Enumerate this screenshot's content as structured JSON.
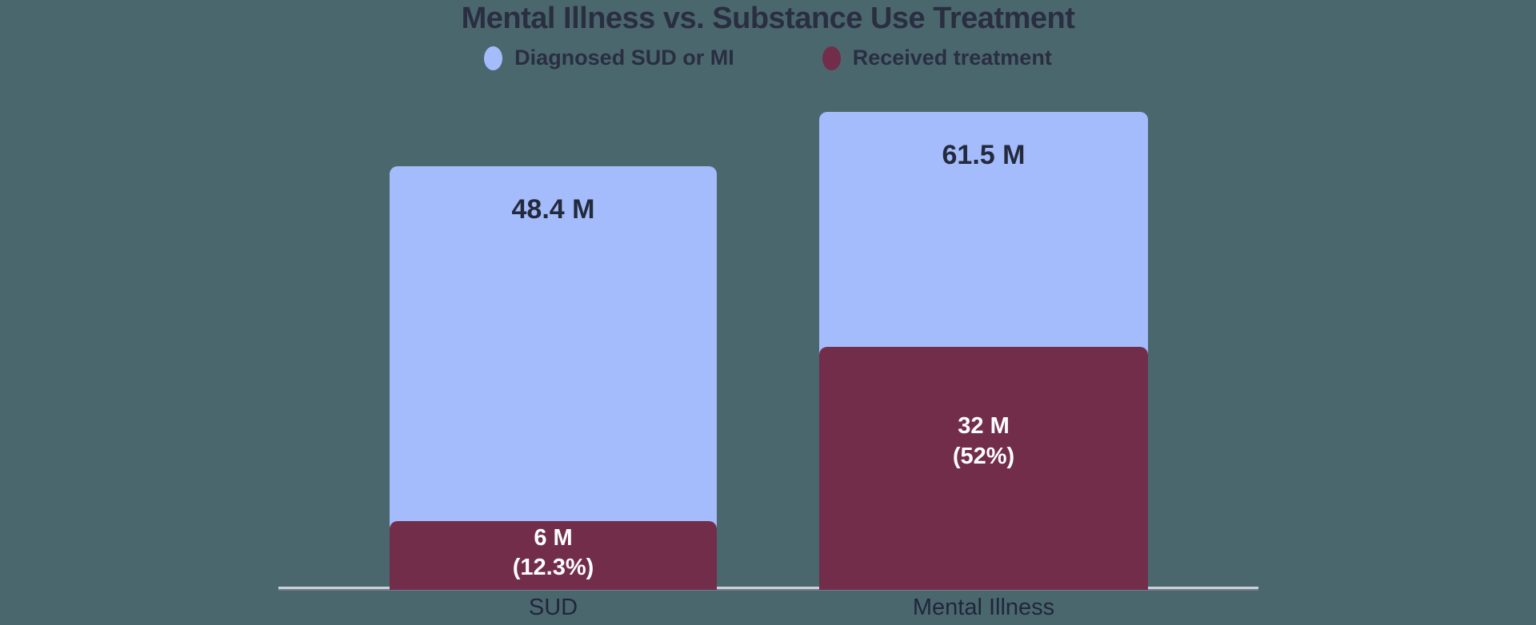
{
  "page": {
    "background_color": "#4b676e"
  },
  "chart": {
    "title": "Mental Illness vs. Substance Use Treatment",
    "title_color": "#292e40",
    "axis_line_color": "#ccd1d8",
    "legend": [
      {
        "label": "Diagnosed SUD or MI",
        "color": "#a4bcfb"
      },
      {
        "label": "Received treatment",
        "color": "#722d4b"
      }
    ],
    "bars": [
      {
        "category": "SUD",
        "total_label": "48.4 M",
        "treated_line1": "6 M",
        "treated_line2": "(12.3%)"
      },
      {
        "category": "Mental Illness",
        "total_label": "61.5 M",
        "treated_line1": "32 M",
        "treated_line2": "(52%)"
      }
    ]
  },
  "chart_data": {
    "type": "bar",
    "categories": [
      "SUD",
      "Mental Illness"
    ],
    "series": [
      {
        "name": "Diagnosed SUD or MI",
        "values": [
          48.4,
          61.5
        ],
        "color": "#a4bcfb"
      },
      {
        "name": "Received treatment",
        "values": [
          6,
          32
        ],
        "color": "#722d4b"
      }
    ],
    "annotations": [
      "48.4 M",
      "6 M (12.3%)",
      "61.5 M",
      "32 M (52%)"
    ],
    "treated_percent_of_diagnosed": [
      12.3,
      52
    ],
    "title": "Mental Illness vs. Substance Use Treatment",
    "xlabel": "",
    "ylabel": "",
    "unit": "millions of people",
    "ylim": [
      0,
      65
    ],
    "grid": false,
    "legend_position": "top-center",
    "style": "overlay bars (treated drawn in front of diagnosed), rounded top corners, no y-axis"
  }
}
